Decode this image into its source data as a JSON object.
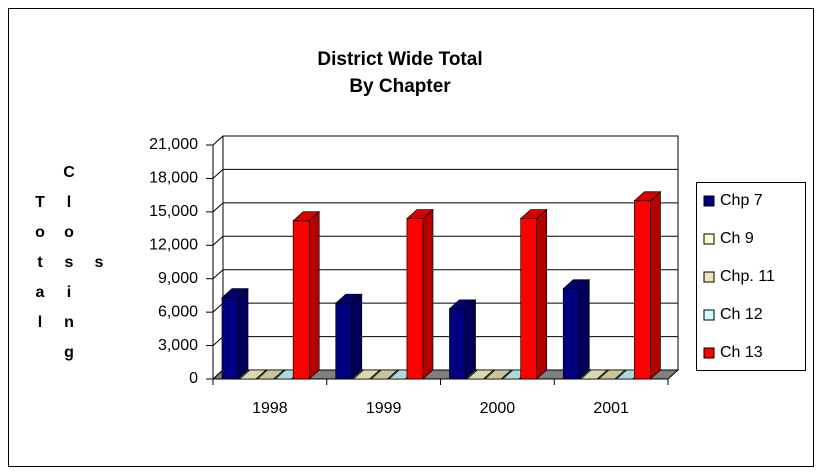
{
  "chart_data": {
    "type": "bar3d",
    "title": [
      "District Wide Total",
      "By Chapter"
    ],
    "ylabel": [
      "Total",
      "Closing",
      "s"
    ],
    "categories": [
      "1998",
      "1999",
      "2000",
      "2001"
    ],
    "series": [
      {
        "name": "Chp 7",
        "color": "#000080",
        "values": [
          7300,
          6800,
          6300,
          8100
        ]
      },
      {
        "name": "Ch 9",
        "color": "#ffffcc",
        "values": [
          0,
          0,
          0,
          0
        ]
      },
      {
        "name": "Chp. 11",
        "color": "#ece6b4",
        "values": [
          0,
          0,
          0,
          0
        ]
      },
      {
        "name": "Ch 12",
        "color": "#ccffff",
        "values": [
          0,
          0,
          0,
          0
        ]
      },
      {
        "name": "Ch 13",
        "color": "#ff0000",
        "values": [
          14200,
          14400,
          14400,
          16000
        ]
      }
    ],
    "ylim": [
      0,
      21000
    ],
    "yticks": [
      0,
      {
        "value": 3000,
        "label": "3,000"
      },
      {
        "value": 6000,
        "label": "6,000"
      },
      {
        "value": 9000,
        "label": "9,000"
      },
      {
        "value": 12000,
        "label": "12,000"
      },
      {
        "value": 15000,
        "label": "15,000"
      },
      {
        "value": 18000,
        "label": "18,000"
      },
      {
        "value": 21000,
        "label": "21,000"
      }
    ],
    "grid": true,
    "legend": "right"
  }
}
